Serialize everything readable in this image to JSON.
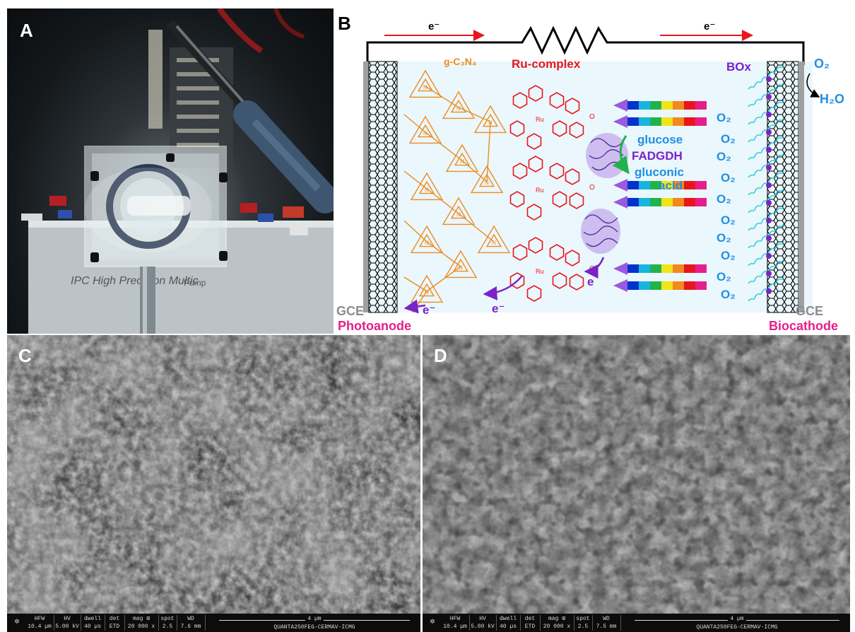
{
  "panels": {
    "a": {
      "label": "A",
      "pump_label": "IPC High Precision Multic",
      "pump_label_tail": "Pump"
    },
    "b": {
      "label": "B",
      "electron_left": "e⁻",
      "electron_right": "e⁻",
      "ru_complex": "Ru-complex",
      "gcn": "g-C₃N₄",
      "box": "BOx",
      "o2_top": "O₂",
      "h2o": "H₂O",
      "glucose": "glucose",
      "fadgdh": "FADGDH",
      "gluconic": "gluconic",
      "acid": "acid",
      "gce_left": "GCE",
      "gce_right": "GCE",
      "photoanode": "Photoanode",
      "biocathode": "Biocathode",
      "e_small": "e⁻",
      "e_mid": "e⁻",
      "e_enzyme": "e",
      "o2_list": [
        "O₂",
        "O₂",
        "O₂",
        "O₂",
        "O₂",
        "O₂",
        "O₂",
        "O₂",
        "O₂",
        "O₂"
      ],
      "ru": "Ru",
      "n": "N",
      "o": "O",
      "colors": {
        "red": "#e8161c",
        "orange": "#ef8a1f",
        "purple": "#7b22c8",
        "blue": "#1e8fe3",
        "pink": "#e61e8c",
        "cyan": "#1ec8d8"
      }
    },
    "c": {
      "label": "C",
      "hfw_h": "HFW",
      "hfw_v": "10.4 µm",
      "hv_h": "HV",
      "hv_v": "5.00 kV",
      "dwell_h": "dwell",
      "dwell_v": "40 µs",
      "det_h": "det",
      "det_v": "ETD",
      "mag_h": "mag ⊞",
      "mag_v": "20 000 x",
      "spot_h": "spot",
      "spot_v": "2.5",
      "wd_h": "WD",
      "wd_v": "7.6 mm",
      "scale": "4 µm",
      "instrument": "QUANTA250FEG-CERMAV-ICMG"
    },
    "d": {
      "label": "D",
      "hfw_h": "HFW",
      "hfw_v": "10.4 µm",
      "hv_h": "HV",
      "hv_v": "5.00 kV",
      "dwell_h": "dwell",
      "dwell_v": "40 µs",
      "det_h": "det",
      "det_v": "ETD",
      "mag_h": "mag ⊞",
      "mag_v": "20 000 x",
      "spot_h": "spot",
      "spot_v": "2.5",
      "wd_h": "WD",
      "wd_v": "7.5 mm",
      "scale": "4 µm",
      "instrument": "QUANTA250FEG-CERMAV-ICMG"
    }
  }
}
